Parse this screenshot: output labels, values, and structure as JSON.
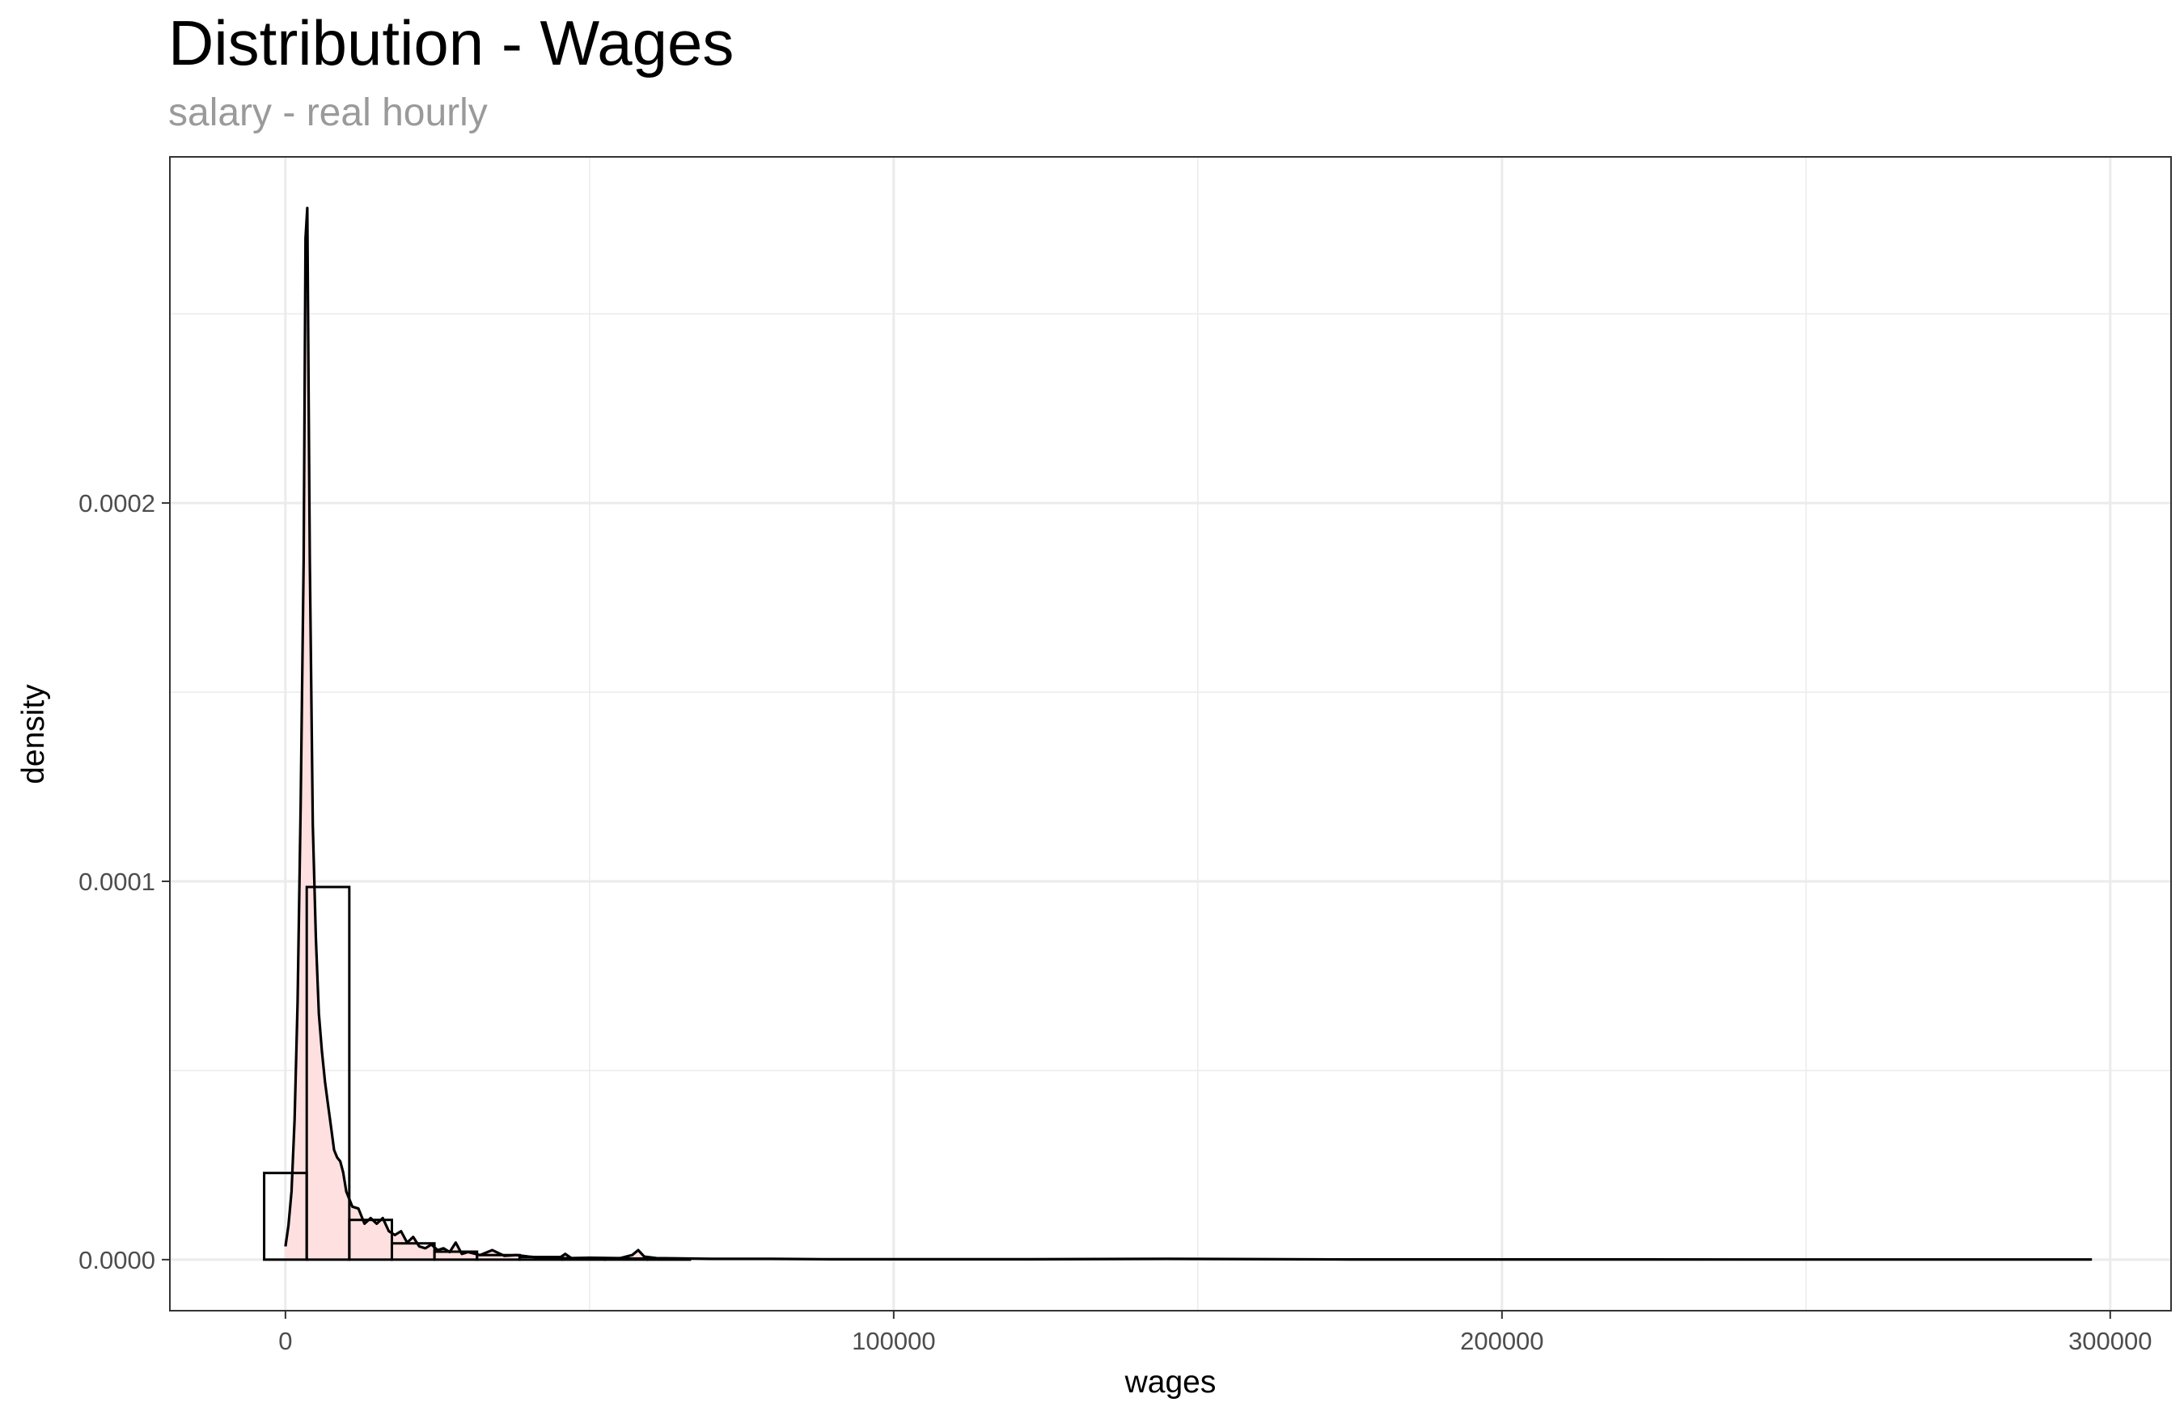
{
  "chart_data": {
    "type": "bar",
    "title": "Distribution - Wages",
    "subtitle": "salary - real hourly",
    "xlabel": "wages",
    "ylabel": "density",
    "xlim": [
      -19000,
      310000
    ],
    "ylim": [
      -1.35e-05,
      0.0002915
    ],
    "x_ticks": [
      0,
      100000,
      200000,
      300000
    ],
    "x_tick_labels": [
      "0",
      "100000",
      "200000",
      "300000"
    ],
    "y_ticks": [
      0,
      0.0001,
      0.0002
    ],
    "y_tick_labels": [
      "0.0000",
      "0.0001",
      "0.0002"
    ],
    "grid": true,
    "colors": {
      "density_fill": "#ffe0e0",
      "line": "#000000",
      "grid": "#ebebeb",
      "panel_border": "#333333"
    },
    "histogram": [
      {
        "x0": -3500,
        "x1": 3500,
        "density": 2.29e-05
      },
      {
        "x0": 3500,
        "x1": 10500,
        "density": 9.85e-05
      },
      {
        "x0": 10500,
        "x1": 17500,
        "density": 1.05e-05
      },
      {
        "x0": 17500,
        "x1": 24500,
        "density": 4.3e-06
      },
      {
        "x0": 24500,
        "x1": 31500,
        "density": 2.1e-06
      },
      {
        "x0": 31500,
        "x1": 38500,
        "density": 1.2e-06
      },
      {
        "x0": 38500,
        "x1": 45500,
        "density": 7e-07
      },
      {
        "x0": 45500,
        "x1": 52500,
        "density": 4e-07
      },
      {
        "x0": 52500,
        "x1": 59500,
        "density": 3e-07
      },
      {
        "x0": 59500,
        "x1": 66500,
        "density": 1e-07
      }
    ],
    "density": {
      "x": [
        0,
        500,
        1000,
        1500,
        2000,
        2500,
        3000,
        3300,
        3600,
        4000,
        4500,
        5000,
        5500,
        6000,
        6500,
        7000,
        7500,
        8000,
        8500,
        9000,
        9500,
        10000,
        11000,
        12000,
        13000,
        14000,
        15000,
        16000,
        17000,
        18000,
        19000,
        20000,
        21000,
        22000,
        23000,
        24000,
        25000,
        26000,
        27000,
        28000,
        29000,
        30000,
        32000,
        34000,
        36000,
        38000,
        40000,
        42000,
        45000,
        46000,
        47000,
        50000,
        55000,
        57000,
        58000,
        59000,
        61000,
        65000,
        70000,
        75000,
        80000,
        90000,
        100000,
        120000,
        145000,
        175000,
        200000,
        250000,
        297000
      ],
      "y": [
        3.5e-06,
        9e-06,
        1.8e-05,
        3.7e-05,
        6.8e-05,
        0.00012,
        0.000185,
        0.00027,
        0.000278,
        0.000185,
        0.000115,
        8.5e-05,
        6.5e-05,
        5.5e-05,
        4.7e-05,
        4.1e-05,
        3.5e-05,
        2.9e-05,
        2.7e-05,
        2.6e-05,
        2.3e-05,
        1.8e-05,
        1.4e-05,
        1.35e-05,
        9.5e-06,
        1.1e-05,
        9.5e-06,
        1.1e-05,
        7.5e-06,
        6.5e-06,
        7.5e-06,
        4.5e-06,
        6e-06,
        3.5e-06,
        3e-06,
        4e-06,
        2.5e-06,
        3e-06,
        2e-06,
        4.5e-06,
        1.5e-06,
        2e-06,
        1.2e-06,
        2.5e-06,
        1e-06,
        1.2e-06,
        8e-07,
        5e-07,
        4e-07,
        1.5e-06,
        4e-07,
        5e-07,
        4e-07,
        1.2e-06,
        2.5e-06,
        8e-07,
        4e-07,
        3e-07,
        2e-07,
        2e-07,
        2e-07,
        1e-07,
        1e-07,
        1e-07,
        2e-07,
        5e-08,
        5e-08,
        3e-08,
        2e-08
      ]
    }
  }
}
